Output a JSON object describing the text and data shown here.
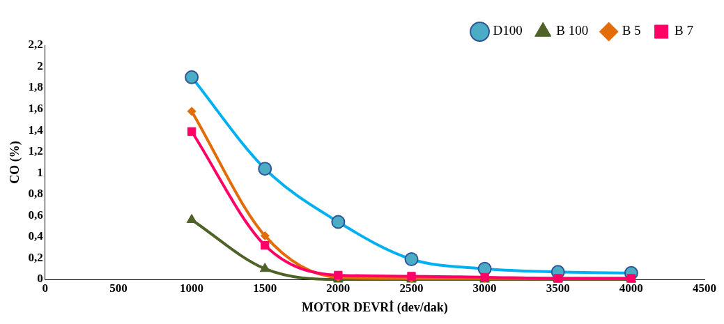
{
  "chart_data": {
    "type": "line",
    "xlabel": "MOTOR DEVRİ (dev/dak)",
    "ylabel": "CO (%)",
    "x": [
      1000,
      1500,
      2000,
      2500,
      3000,
      3500,
      4000
    ],
    "series": [
      {
        "name": "D100",
        "color": "#00b0f0",
        "marker": "circle",
        "values": [
          1.9,
          1.04,
          0.54,
          0.19,
          0.1,
          0.07,
          0.06
        ]
      },
      {
        "name": "B 100",
        "color": "#4f6228",
        "marker": "triangle",
        "values": [
          0.56,
          0.1,
          0,
          0,
          0,
          0,
          0
        ]
      },
      {
        "name": "B 5",
        "color": "#e36c09",
        "marker": "diamond",
        "values": [
          1.58,
          0.41,
          0.02,
          0.01,
          0.01,
          0.01,
          0.01
        ]
      },
      {
        "name": "B 7",
        "color": "#ff0066",
        "marker": "square",
        "values": [
          1.39,
          0.32,
          0.04,
          0.03,
          0.02,
          0.01,
          0.01
        ]
      }
    ],
    "xlim": [
      0,
      4500
    ],
    "xticks": [
      0,
      500,
      1000,
      1500,
      2000,
      2500,
      3000,
      3500,
      4000,
      4500
    ],
    "ylim": [
      0,
      2.2
    ],
    "yticks": [
      0,
      {
        "value": 0.2,
        "label": "0,2"
      },
      {
        "value": 0.4,
        "label": "0,4"
      },
      {
        "value": 0.6,
        "label": "0,6"
      },
      {
        "value": 0.8,
        "label": "0,8"
      },
      1,
      {
        "value": 1.2,
        "label": "1,2"
      },
      {
        "value": 1.4,
        "label": "1,4"
      },
      {
        "value": 1.6,
        "label": "1,6"
      },
      {
        "value": 1.8,
        "label": "1,8"
      },
      2,
      {
        "value": 2.2,
        "label": "2,2"
      }
    ],
    "grid": false,
    "legend": "top"
  }
}
